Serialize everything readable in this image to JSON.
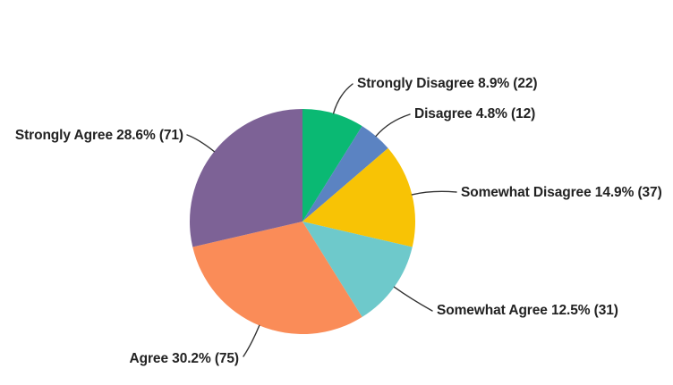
{
  "chart_data": {
    "type": "pie",
    "title": "",
    "direction": "clockwise",
    "start_angle_deg": 0,
    "legend_position": "callout-labels",
    "background_color": "#FFFFFF",
    "text_color": "#222222",
    "leader_line_color": "#333333",
    "slices": [
      {
        "label": "Strongly Disagree",
        "percent": 8.9,
        "count": 22,
        "color": "#0AB973",
        "display": "Strongly Disagree 8.9% (22)"
      },
      {
        "label": "Disagree",
        "percent": 4.8,
        "count": 12,
        "color": "#5B83C2",
        "display": "Disagree 4.8% (12)"
      },
      {
        "label": "Somewhat Disagree",
        "percent": 14.9,
        "count": 37,
        "color": "#F8C305",
        "display": "Somewhat Disagree 14.9% (37)"
      },
      {
        "label": "Somewhat Agree",
        "percent": 12.5,
        "count": 31,
        "color": "#6EC9CB",
        "display": "Somewhat Agree 12.5% (31)"
      },
      {
        "label": "Agree",
        "percent": 30.2,
        "count": 75,
        "color": "#FA8C58",
        "display": "Agree 30.2% (75)"
      },
      {
        "label": "Strongly Agree",
        "percent": 28.6,
        "count": 71,
        "color": "#7D6296",
        "display": "Strongly Agree 28.6% (71)"
      }
    ]
  }
}
